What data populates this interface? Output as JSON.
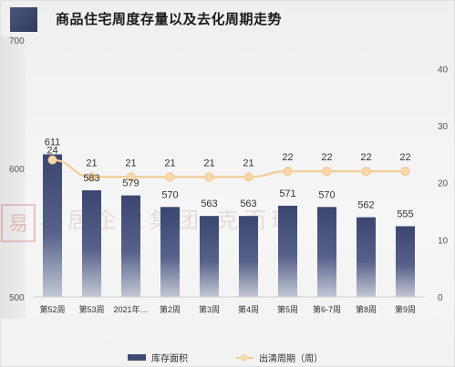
{
  "header": {
    "title": "商品住宅周度存量以及去化周期走势"
  },
  "watermark": {
    "text": "易居企业集团·克而瑞",
    "seal": "易"
  },
  "legend": {
    "bar_label": "库存面积",
    "line_label": "出清周期（周）"
  },
  "colors": {
    "bar_top": "#3b4670",
    "bar_bottom": "#c3c7d5",
    "line": "#f2cd98",
    "marker": "#f7d8aa"
  },
  "chart_data": {
    "type": "bar",
    "categories": [
      "第52周",
      "第53周",
      "2021年…",
      "第2周",
      "第3周",
      "第4周",
      "第5周",
      "第6-7周",
      "第8周",
      "第9周"
    ],
    "series": [
      {
        "type": "bar",
        "axis": "left",
        "values": [
          611,
          583,
          579,
          570,
          563,
          563,
          571,
          570,
          562,
          555
        ],
        "labels": [
          "611",
          "583",
          "579",
          "570",
          "563",
          "563",
          "571",
          "570",
          "562",
          "555"
        ]
      },
      {
        "type": "line",
        "axis": "right",
        "values": [
          24,
          21,
          21,
          21,
          21,
          21,
          22,
          22,
          22,
          22
        ],
        "labels": [
          "24",
          "21",
          "21",
          "21",
          "21",
          "21",
          "22",
          "22",
          "22",
          "22"
        ]
      }
    ],
    "left_axis": {
      "ylim": [
        500,
        700
      ],
      "ticks": [
        "500",
        "600",
        "700"
      ]
    },
    "right_axis": {
      "ylim": [
        0,
        45
      ],
      "ticks": [
        "0",
        "10",
        "20",
        "30",
        "40"
      ]
    },
    "grid": false,
    "legend_position": "bottom"
  }
}
